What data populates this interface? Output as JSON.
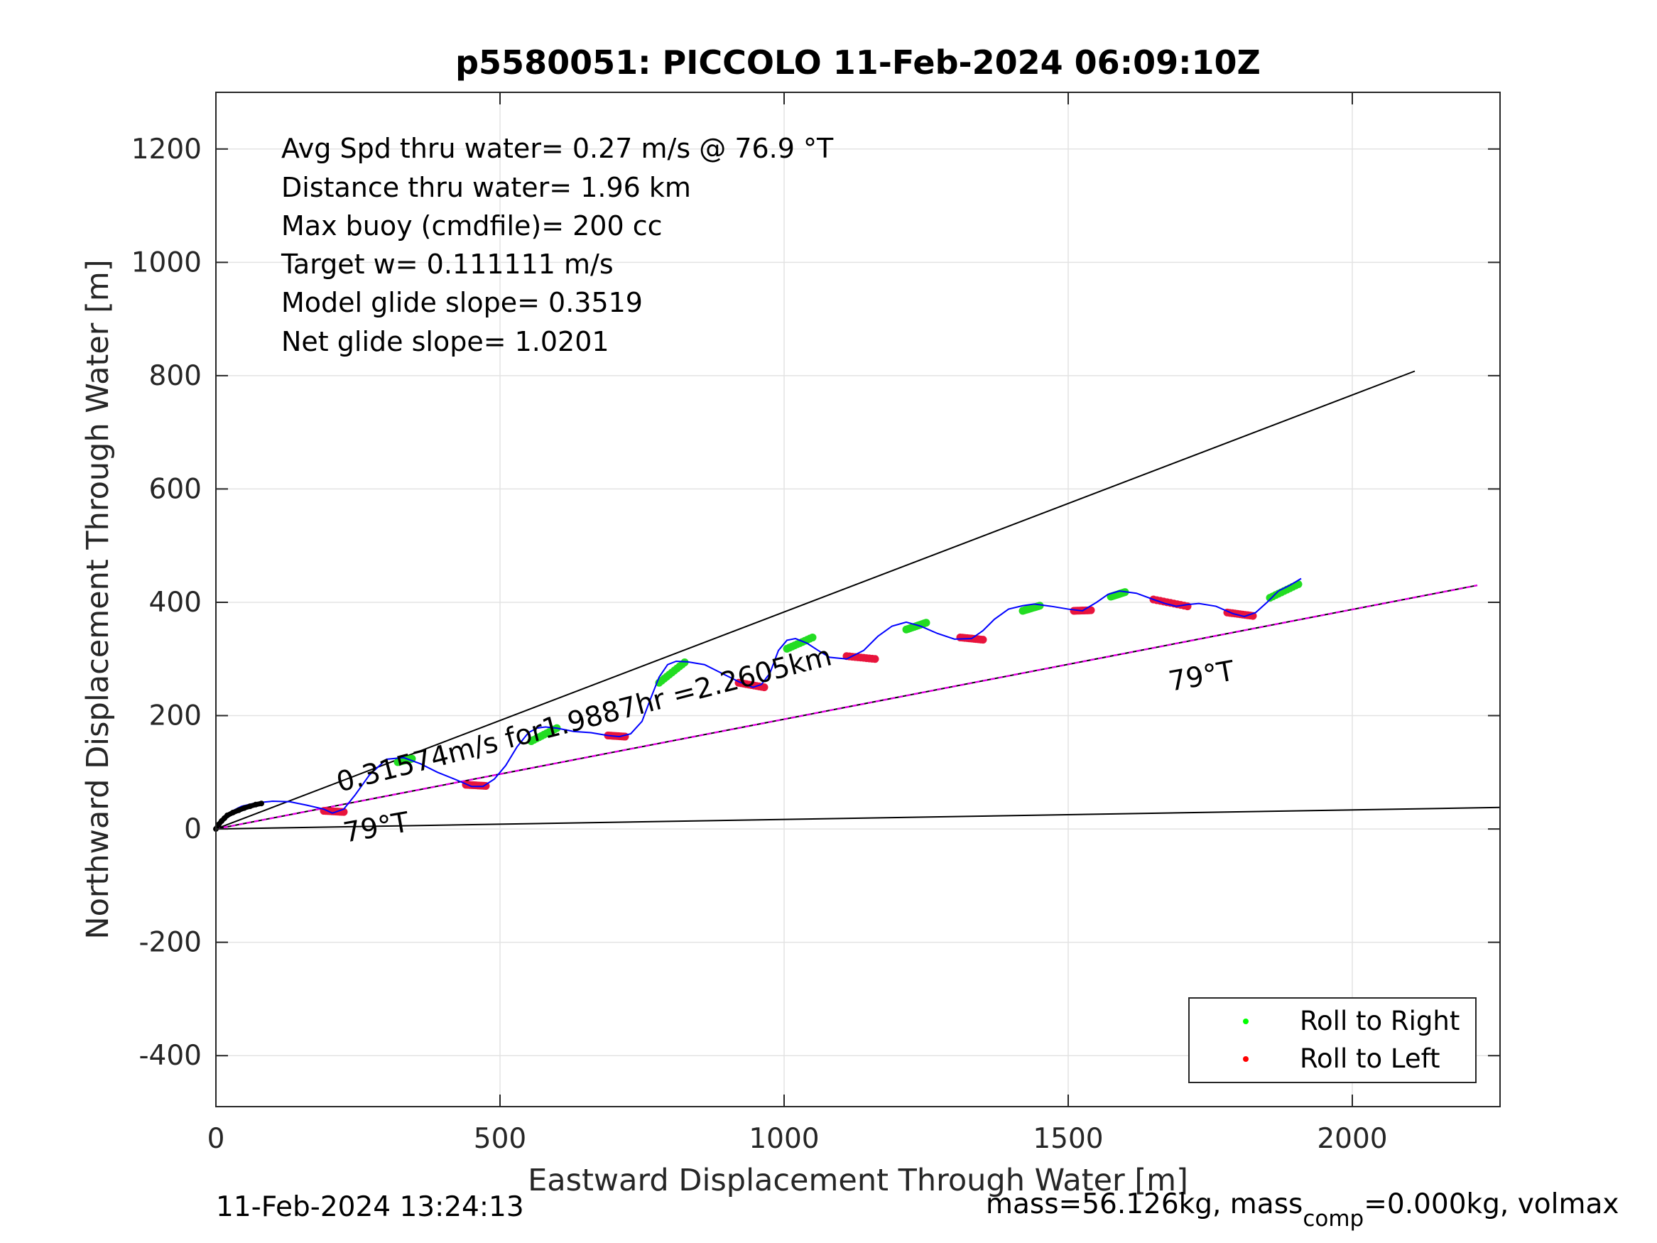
{
  "chart_data": {
    "type": "line",
    "title": "p5580051: PICCOLO 11-Feb-2024 06:09:10Z",
    "xlabel": "Eastward Displacement Through Water [m]",
    "ylabel": "Northward Displacement Through Water [m]",
    "xlim": [
      0,
      2260
    ],
    "ylim": [
      -490,
      1300
    ],
    "xticks": [
      0,
      500,
      1000,
      1500,
      2000
    ],
    "yticks": [
      -400,
      -200,
      0,
      200,
      400,
      600,
      800,
      1000,
      1200
    ],
    "xtick_labels": [
      "0",
      "500",
      "1000",
      "1500",
      "2000"
    ],
    "ytick_labels": [
      "-400",
      "-200",
      "0",
      "200",
      "400",
      "600",
      "800",
      "1000",
      "1200"
    ],
    "grid": true,
    "info_lines": [
      "Avg Spd thru water=  0.27 m/s @  76.9 °T",
      "Distance thru water=  1.96 km",
      "Max buoy (cmdfile)= 200 cc",
      "Target w= 0.111111 m/s",
      "Model glide slope= 0.3519",
      "Net glide slope= 1.0201"
    ],
    "annotations": {
      "speed_label": "0.31574m/s for1.9887hr =2.2605km",
      "heading_label_start": "79°T",
      "heading_label_end": "79°T"
    },
    "reference_lines": [
      {
        "name": "upper",
        "x": [
          0,
          2110
        ],
        "y": [
          0,
          808
        ],
        "color": "#000000"
      },
      {
        "name": "heading",
        "x": [
          0,
          2220
        ],
        "y": [
          0,
          430
        ],
        "color": "#000000"
      },
      {
        "name": "lower",
        "x": [
          0,
          2260
        ],
        "y": [
          0,
          38
        ],
        "color": "#000000"
      },
      {
        "name": "heading-dashed",
        "x": [
          0,
          2220
        ],
        "y": [
          0,
          430
        ],
        "color": "#e600e6"
      }
    ],
    "track": {
      "color": "#0000ff",
      "x": [
        0,
        10,
        25,
        45,
        70,
        100,
        130,
        160,
        190,
        205,
        225,
        245,
        270,
        300,
        330,
        360,
        390,
        420,
        450,
        470,
        490,
        510,
        530,
        550,
        565,
        580,
        600,
        630,
        660,
        690,
        710,
        730,
        750,
        765,
        780,
        795,
        810,
        830,
        860,
        890,
        920,
        945,
        960,
        975,
        990,
        1005,
        1020,
        1040,
        1060,
        1080,
        1110,
        1140,
        1165,
        1190,
        1215,
        1240,
        1270,
        1300,
        1330,
        1350,
        1370,
        1395,
        1420,
        1440,
        1470,
        1500,
        1525,
        1550,
        1570,
        1590,
        1620,
        1650,
        1670,
        1690,
        1710,
        1730,
        1760,
        1790,
        1810,
        1830,
        1850,
        1870,
        1890,
        1910
      ],
      "y": [
        0,
        18,
        30,
        40,
        46,
        49,
        48,
        42,
        35,
        28,
        35,
        60,
        95,
        123,
        126,
        115,
        100,
        88,
        75,
        75,
        88,
        112,
        145,
        170,
        178,
        180,
        178,
        172,
        170,
        165,
        163,
        168,
        190,
        230,
        268,
        290,
        296,
        295,
        290,
        275,
        260,
        250,
        255,
        275,
        315,
        333,
        336,
        328,
        315,
        303,
        300,
        315,
        340,
        358,
        365,
        358,
        345,
        335,
        336,
        350,
        370,
        388,
        394,
        397,
        393,
        388,
        385,
        400,
        414,
        420,
        416,
        405,
        398,
        393,
        396,
        398,
        393,
        380,
        375,
        382,
        400,
        420,
        430,
        442
      ]
    },
    "start_points": {
      "color": "#000000",
      "x": [
        0,
        5,
        10,
        15,
        20,
        30,
        40,
        50,
        60,
        70,
        80
      ],
      "y": [
        0,
        8,
        14,
        19,
        24,
        29,
        33,
        37,
        40,
        43,
        45
      ]
    },
    "roll_to_right_segments": [
      {
        "x": [
          320,
          345
        ],
        "y": [
          118,
          124
        ]
      },
      {
        "x": [
          555,
          600
        ],
        "y": [
          155,
          178
        ]
      },
      {
        "x": [
          780,
          825
        ],
        "y": [
          258,
          294
        ]
      },
      {
        "x": [
          1005,
          1050
        ],
        "y": [
          318,
          338
        ]
      },
      {
        "x": [
          1215,
          1250
        ],
        "y": [
          352,
          364
        ]
      },
      {
        "x": [
          1420,
          1450
        ],
        "y": [
          385,
          394
        ]
      },
      {
        "x": [
          1575,
          1600
        ],
        "y": [
          410,
          418
        ]
      },
      {
        "x": [
          1855,
          1905
        ],
        "y": [
          408,
          432
        ]
      }
    ],
    "roll_to_left_segments": [
      {
        "x": [
          190,
          225
        ],
        "y": [
          32,
          30
        ]
      },
      {
        "x": [
          440,
          475
        ],
        "y": [
          78,
          76
        ]
      },
      {
        "x": [
          690,
          720
        ],
        "y": [
          165,
          163
        ]
      },
      {
        "x": [
          920,
          965
        ],
        "y": [
          258,
          250
        ]
      },
      {
        "x": [
          1110,
          1160
        ],
        "y": [
          305,
          300
        ]
      },
      {
        "x": [
          1310,
          1350
        ],
        "y": [
          338,
          334
        ]
      },
      {
        "x": [
          1510,
          1540
        ],
        "y": [
          385,
          386
        ]
      },
      {
        "x": [
          1650,
          1710
        ],
        "y": [
          405,
          393
        ]
      },
      {
        "x": [
          1780,
          1825
        ],
        "y": [
          382,
          376
        ]
      }
    ],
    "legend": [
      {
        "label": "Roll to Right",
        "color": "#00ff00"
      },
      {
        "label": "Roll to Left",
        "color": "#ff0000"
      }
    ],
    "legend_position": "bottom-right"
  },
  "footer": {
    "timestamp": "11-Feb-2024 13:24:13",
    "mass_prefix": "mass=56.126kg, mass",
    "mass_sub": "comp",
    "mass_suffix": "=0.000kg, volmax"
  }
}
